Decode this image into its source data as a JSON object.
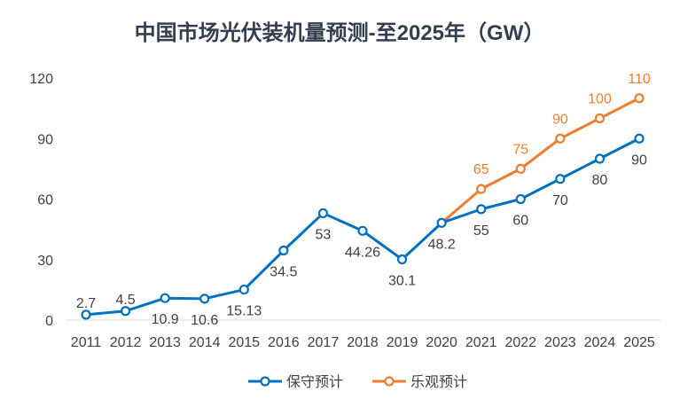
{
  "chart_data": {
    "type": "line",
    "title": "中国市场光伏装机量预测-至2025年（GW）",
    "xlabel": "",
    "ylabel": "",
    "ylim": [
      0,
      120
    ],
    "yticks": [
      "0",
      "30",
      "60",
      "90",
      "120"
    ],
    "grid": false,
    "legend_position": "bottom",
    "categories": [
      "2011",
      "2012",
      "2013",
      "2014",
      "2015",
      "2016",
      "2017",
      "2018",
      "2019",
      "2020",
      "2021",
      "2022",
      "2023",
      "2024",
      "2025"
    ],
    "series": [
      {
        "name": "保守预计",
        "color": "#0070C0",
        "values": [
          2.7,
          4.5,
          10.9,
          10.6,
          15.13,
          34.5,
          53,
          44.26,
          30.1,
          48.2,
          55,
          60,
          70,
          80,
          90
        ],
        "labels": [
          "2.7",
          "4.5",
          "10.9",
          "10.6",
          "15.13",
          "34.5",
          "53",
          "44.26",
          "30.1",
          "48.2",
          "55",
          "60",
          "70",
          "80",
          "90"
        ],
        "label_side": [
          "above",
          "above",
          "below",
          "below",
          "below",
          "below",
          "below",
          "below",
          "below",
          "below",
          "below",
          "below",
          "below",
          "below",
          "below"
        ]
      },
      {
        "name": "乐观预计",
        "color": "#ED7D31",
        "values": [
          null,
          null,
          null,
          null,
          null,
          null,
          null,
          null,
          null,
          48.2,
          65,
          75,
          90,
          100,
          110
        ],
        "labels": [
          "",
          "",
          "",
          "",
          "",
          "",
          "",
          "",
          "",
          "",
          "65",
          "75",
          "90",
          "100",
          "110"
        ],
        "label_side": [
          "above",
          "above",
          "above",
          "above",
          "above",
          "above",
          "above",
          "above",
          "above",
          "above",
          "above",
          "above",
          "above",
          "above",
          "above"
        ]
      }
    ]
  }
}
